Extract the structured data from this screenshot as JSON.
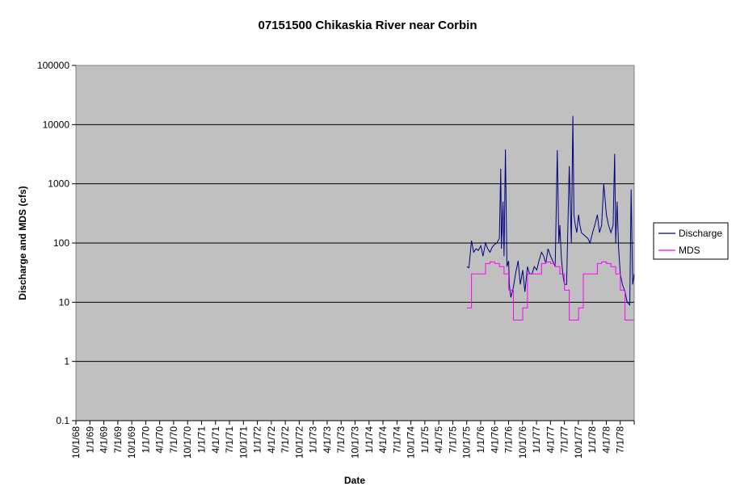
{
  "chart_data": {
    "type": "line",
    "title": "07151500 Chikaskia River near Corbin",
    "xlabel": "Date",
    "ylabel": "Discharge and MDS (cfs)",
    "y_scale": "log",
    "ylim": [
      0.1,
      100000
    ],
    "y_ticks": [
      "0.1",
      "1",
      "10",
      "100",
      "1000",
      "10000",
      "100000"
    ],
    "x_tick_labels": [
      "10/1/68",
      "1/1/69",
      "4/1/69",
      "7/1/69",
      "10/1/69",
      "1/1/70",
      "4/1/70",
      "7/1/70",
      "10/1/70",
      "1/1/71",
      "4/1/71",
      "7/1/71",
      "10/1/71",
      "1/1/72",
      "4/1/72",
      "7/1/72",
      "10/1/72",
      "1/1/73",
      "4/1/73",
      "7/1/73",
      "10/1/73",
      "1/1/74",
      "4/1/74",
      "7/1/74",
      "10/1/74",
      "1/1/75",
      "4/1/75",
      "7/1/75",
      "10/1/75",
      "1/1/76",
      "4/1/76",
      "7/1/76",
      "10/1/76",
      "1/1/77",
      "4/1/77",
      "7/1/77",
      "10/1/77",
      "1/1/78",
      "4/1/78",
      "7/1/78"
    ],
    "x_range": [
      "1968-10-01",
      "1978-09-30"
    ],
    "grid": "horizontal major lines",
    "plot_background": "#c0c0c0",
    "legend_position": "right",
    "series": [
      {
        "name": "Discharge",
        "color": "#000080",
        "x": [
          "1975-10-01",
          "1975-10-15",
          "1975-11-01",
          "1975-11-15",
          "1975-12-01",
          "1975-12-15",
          "1976-01-01",
          "1976-01-15",
          "1976-02-01",
          "1976-02-15",
          "1976-03-01",
          "1976-03-15",
          "1976-04-01",
          "1976-04-15",
          "1976-05-01",
          "1976-05-10",
          "1976-05-15",
          "1976-05-25",
          "1976-06-01",
          "1976-06-10",
          "1976-06-20",
          "1976-07-01",
          "1976-07-05",
          "1976-07-15",
          "1976-08-01",
          "1976-08-15",
          "1976-09-01",
          "1976-09-15",
          "1976-10-01",
          "1976-10-15",
          "1976-11-01",
          "1976-11-15",
          "1976-12-01",
          "1976-12-15",
          "1977-01-01",
          "1977-01-15",
          "1977-02-01",
          "1977-02-15",
          "1977-03-01",
          "1977-03-15",
          "1977-04-01",
          "1977-04-15",
          "1977-05-01",
          "1977-05-15",
          "1977-05-25",
          "1977-06-01",
          "1977-06-10",
          "1977-06-20",
          "1977-07-01",
          "1977-07-15",
          "1977-08-01",
          "1977-08-15",
          "1977-08-25",
          "1977-09-01",
          "1977-09-10",
          "1977-09-20",
          "1977-10-01",
          "1977-10-10",
          "1977-10-20",
          "1977-11-01",
          "1977-11-15",
          "1977-12-01",
          "1977-12-15",
          "1978-01-01",
          "1978-01-15",
          "1978-02-01",
          "1978-02-15",
          "1978-03-01",
          "1978-03-15",
          "1978-04-01",
          "1978-04-15",
          "1978-05-01",
          "1978-05-15",
          "1978-05-25",
          "1978-06-01",
          "1978-06-10",
          "1978-06-20",
          "1978-07-01",
          "1978-07-15",
          "1978-08-01",
          "1978-08-15",
          "1978-09-01",
          "1978-09-10",
          "1978-09-20",
          "1978-09-30"
        ],
        "values": [
          40,
          38,
          110,
          70,
          80,
          75,
          90,
          60,
          100,
          80,
          70,
          85,
          95,
          100,
          120,
          1800,
          80,
          500,
          60,
          3800,
          40,
          50,
          20,
          12,
          18,
          30,
          50,
          20,
          35,
          15,
          40,
          30,
          30,
          40,
          35,
          50,
          70,
          60,
          45,
          80,
          60,
          50,
          40,
          3700,
          100,
          200,
          60,
          30,
          20,
          20,
          2000,
          100,
          14000,
          300,
          200,
          150,
          300,
          200,
          150,
          140,
          130,
          120,
          100,
          150,
          200,
          300,
          150,
          200,
          1000,
          300,
          200,
          150,
          200,
          3200,
          100,
          500,
          80,
          30,
          20,
          15,
          10,
          9,
          800,
          20,
          30
        ]
      },
      {
        "name": "MDS",
        "color": "#ff00ff",
        "x": [
          "1975-10-01",
          "1975-11-01",
          "1975-12-01",
          "1976-01-01",
          "1976-02-01",
          "1976-03-01",
          "1976-04-01",
          "1976-05-01",
          "1976-06-01",
          "1976-07-01",
          "1976-08-01",
          "1976-09-01",
          "1976-10-01",
          "1976-11-01",
          "1976-12-01",
          "1977-01-01",
          "1977-02-01",
          "1977-03-01",
          "1977-04-01",
          "1977-05-01",
          "1977-06-01",
          "1977-07-01",
          "1977-08-01",
          "1977-09-01",
          "1977-10-01",
          "1977-11-01",
          "1977-12-01",
          "1978-01-01",
          "1978-02-01",
          "1978-03-01",
          "1978-04-01",
          "1978-05-01",
          "1978-06-01",
          "1978-07-01",
          "1978-08-01",
          "1978-09-01"
        ],
        "values": [
          8,
          30,
          30,
          30,
          45,
          48,
          45,
          40,
          30,
          16,
          5,
          5,
          8,
          30,
          30,
          30,
          45,
          48,
          45,
          40,
          30,
          16,
          5,
          5,
          8,
          30,
          30,
          30,
          45,
          48,
          45,
          40,
          30,
          16,
          5,
          5
        ]
      }
    ]
  }
}
